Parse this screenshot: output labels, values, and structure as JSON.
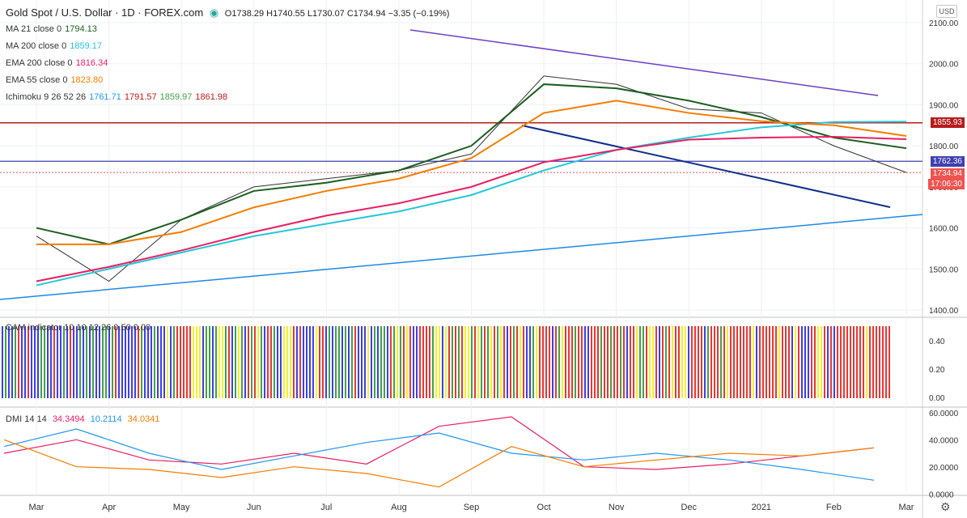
{
  "header": {
    "title": "Gold Spot / U.S. Dollar · 1D · FOREX.com",
    "ohlc": "O1738.29 H1740.55 L1730.07 C1734.94 −3.35 (−0.19%)"
  },
  "legends": [
    {
      "label": "MA 21 close 0",
      "value": "1794.13",
      "color": "#1b5e20"
    },
    {
      "label": "MA 200 close 0",
      "value": "1859.17",
      "color": "#26c6da"
    },
    {
      "label": "EMA 200 close 0",
      "value": "1816.34",
      "color": "#e91e63"
    },
    {
      "label": "EMA 55 close 0",
      "value": "1823.80",
      "color": "#f57c00"
    },
    {
      "label": "Ichimoku 9 26 52 26",
      "values": [
        "1761.71",
        "1791.57",
        "1859.97",
        "1861.98"
      ],
      "colors": [
        "#2196f3",
        "#b71c1c",
        "#43a047",
        "#b71c1c"
      ]
    }
  ],
  "currency": "USD",
  "price_tags": {
    "resistance": "1855.93",
    "support": "1762.36",
    "last": "1734.94",
    "countdown": "17:06:30"
  },
  "cam": {
    "label": "CAM indicator 10 10 12 26 0.50 0.00",
    "yticks": [
      "0.40",
      "0.20",
      "0.00"
    ]
  },
  "dmi": {
    "label": "DMI 14 14",
    "values": [
      "34.3494",
      "10.2114",
      "34.0341"
    ],
    "colors": [
      "#e91e63",
      "#2196f3",
      "#f57c00"
    ],
    "yticks": [
      "60.0000",
      "40.0000",
      "20.0000",
      "0.0000"
    ]
  },
  "chart_data": {
    "type": "line",
    "x": [
      "Mar",
      "Apr",
      "May",
      "Jun",
      "Jul",
      "Aug",
      "Sep",
      "Oct",
      "Nov",
      "Dec",
      "2021",
      "Feb",
      "Mar"
    ],
    "yticks": [
      2100,
      2000,
      1900,
      1800,
      1700,
      1600,
      1500,
      1400
    ],
    "ylim": [
      1400,
      2100
    ],
    "series": [
      {
        "name": "Price",
        "color": "#333333",
        "values": [
          1580,
          1470,
          1620,
          1700,
          1720,
          1740,
          1780,
          1970,
          1950,
          1890,
          1880,
          1800,
          1735
        ]
      },
      {
        "name": "MA 21",
        "color": "#1b5e20",
        "values": [
          1600,
          1560,
          1620,
          1690,
          1710,
          1740,
          1800,
          1950,
          1940,
          1910,
          1870,
          1820,
          1794
        ]
      },
      {
        "name": "MA 200",
        "color": "#26c6da",
        "values": [
          1460,
          1500,
          1540,
          1580,
          1610,
          1640,
          1680,
          1740,
          1790,
          1820,
          1845,
          1858,
          1859
        ]
      },
      {
        "name": "EMA 200",
        "color": "#e91e63",
        "values": [
          1470,
          1505,
          1545,
          1590,
          1630,
          1660,
          1700,
          1760,
          1790,
          1815,
          1820,
          1822,
          1816
        ]
      },
      {
        "name": "EMA 55",
        "color": "#f57c00",
        "values": [
          1560,
          1560,
          1590,
          1650,
          1690,
          1720,
          1770,
          1880,
          1910,
          1880,
          1860,
          1850,
          1824
        ]
      }
    ],
    "grid": true
  }
}
